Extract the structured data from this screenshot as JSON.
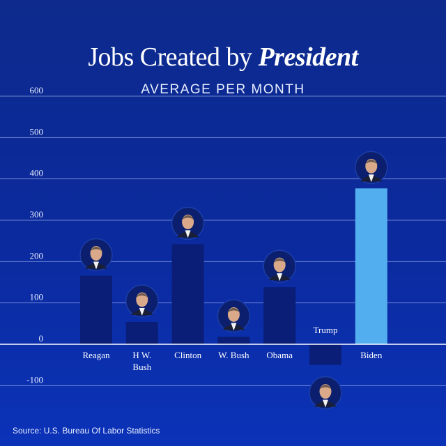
{
  "title_prefix": "Jobs Created by ",
  "title_emphasis": "President",
  "subtitle": "AVERAGE PER MONTH",
  "source": "Source: U.S.  Bureau Of Labor Statistics",
  "colors": {
    "bar_default": "#0a1e78",
    "bar_highlight": "#53aef0",
    "background": "#0b2a9e"
  },
  "chart_data": {
    "type": "bar",
    "title": "Jobs Created by President",
    "subtitle": "AVERAGE PER MONTH",
    "xlabel": "",
    "ylabel": "",
    "ylim": [
      -100,
      600
    ],
    "yticks": [
      -100,
      0,
      100,
      200,
      300,
      400,
      500,
      600
    ],
    "grid": true,
    "categories": [
      [
        "Reagan"
      ],
      [
        "H W.",
        "Bush"
      ],
      [
        "Clinton"
      ],
      [
        "W. Bush"
      ],
      [
        "Obama"
      ],
      [
        "Trump"
      ],
      [
        "Biden"
      ]
    ],
    "values": [
      166,
      54,
      242,
      18,
      138,
      -50,
      377
    ],
    "highlight": "Biden",
    "markers": [
      "president-portrait",
      "president-portrait",
      "president-portrait",
      "president-portrait",
      "president-portrait",
      "president-portrait",
      "president-portrait"
    ]
  }
}
